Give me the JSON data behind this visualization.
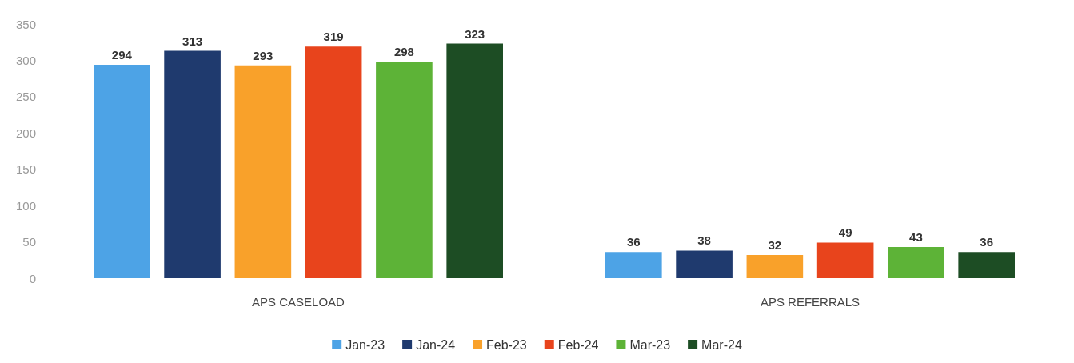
{
  "chart_data": {
    "type": "bar",
    "categories": [
      "APS CASELOAD",
      "APS REFERRALS"
    ],
    "series": [
      {
        "name": "Jan-23",
        "color": "#4da3e6",
        "values": [
          294,
          36
        ]
      },
      {
        "name": "Jan-24",
        "color": "#1f3a6e",
        "values": [
          313,
          38
        ]
      },
      {
        "name": "Feb-23",
        "color": "#f9a12a",
        "values": [
          293,
          32
        ]
      },
      {
        "name": "Feb-24",
        "color": "#e8441c",
        "values": [
          319,
          49
        ]
      },
      {
        "name": "Mar-23",
        "color": "#5db337",
        "values": [
          298,
          43
        ]
      },
      {
        "name": "Mar-24",
        "color": "#1d4d24",
        "values": [
          323,
          36
        ]
      }
    ],
    "ylim": [
      0,
      350
    ],
    "yticks": [
      0,
      50,
      100,
      150,
      200,
      250,
      300,
      350
    ],
    "data_labels": true,
    "grid": false,
    "legend": "bottom"
  }
}
